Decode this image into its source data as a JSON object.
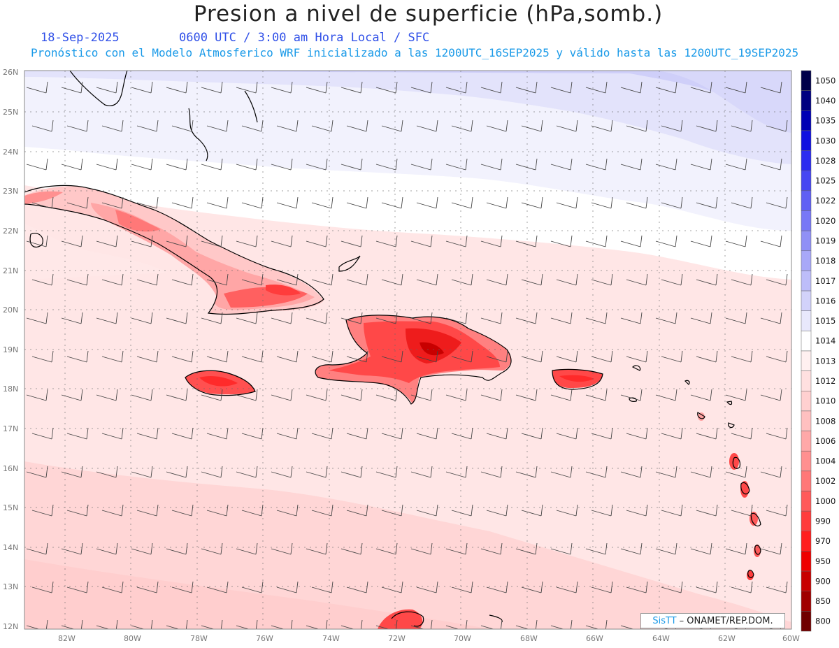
{
  "header": {
    "title": "Presion a nivel de superficie (hPa,somb.)",
    "date": "18-Sep-2025",
    "time": "0600 UTC / 3:00 am Hora Local / SFC",
    "model": "Pronóstico con el Modelo Atmosferico WRF inicializado a las 1200UTC_16SEP2025 y válido hasta las  1200UTC_19SEP2025"
  },
  "axes": {
    "lat_labels": [
      "26N",
      "25N",
      "24N",
      "23N",
      "22N",
      "21N",
      "20N",
      "19N",
      "18N",
      "17N",
      "16N",
      "15N",
      "14N",
      "13N",
      "12N"
    ],
    "lon_labels": [
      "82W",
      "80W",
      "78W",
      "76W",
      "74W",
      "72W",
      "70W",
      "68W",
      "66W",
      "64W",
      "62W",
      "60W"
    ]
  },
  "colorbar": {
    "levels": [
      "1050",
      "1040",
      "1035",
      "1030",
      "1028",
      "1025",
      "1022",
      "1020",
      "1019",
      "1018",
      "1017",
      "1016",
      "1015",
      "1014",
      "1013",
      "1012",
      "1010",
      "1008",
      "1006",
      "1004",
      "1002",
      "1000",
      "990",
      "970",
      "950",
      "900",
      "850",
      "800"
    ],
    "colors": [
      "#00004a",
      "#000080",
      "#0000b4",
      "#1010e0",
      "#2c2cf0",
      "#4646f2",
      "#6060f4",
      "#7878f6",
      "#9090f6",
      "#a8a8f8",
      "#bdbdf9",
      "#d2d2fa",
      "#e8e8fc",
      "#ffffff",
      "#fff0f0",
      "#ffe0e0",
      "#ffd0d0",
      "#ffc0c0",
      "#ffa8a8",
      "#ff9090",
      "#ff7878",
      "#ff5a5a",
      "#ff3c3c",
      "#ff1e1e",
      "#ee0000",
      "#c80000",
      "#a00000",
      "#700000"
    ]
  },
  "credit": {
    "sis": "SisTT",
    "org": "– ONAMET/REP.DOM."
  }
}
